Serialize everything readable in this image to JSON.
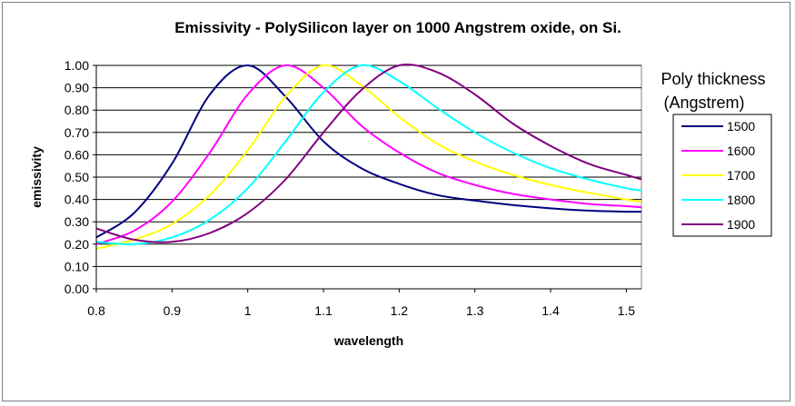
{
  "chart_data": {
    "type": "line",
    "title": "Emissivity - PolySilicon layer on 1000 Angstrem oxide, on Si.",
    "xlabel": "wavelength",
    "ylabel": "emissivity",
    "xlim": [
      0.8,
      1.52
    ],
    "ylim": [
      0.0,
      1.0
    ],
    "x_ticks": [
      "0.8",
      "0.9",
      "1",
      "1.1",
      "1.2",
      "1.3",
      "1.4",
      "1.5"
    ],
    "y_ticks": [
      "0.00",
      "0.10",
      "0.20",
      "0.30",
      "0.40",
      "0.50",
      "0.60",
      "0.70",
      "0.80",
      "0.90",
      "1.00"
    ],
    "grid": "horizontal",
    "legend_title_line1": "Poly thickness",
    "legend_title_line2": "(Angstrem)",
    "legend_position": "right",
    "x": [
      0.8,
      0.85,
      0.9,
      0.95,
      1.0,
      1.05,
      1.1,
      1.15,
      1.2,
      1.25,
      1.3,
      1.35,
      1.4,
      1.45,
      1.5,
      1.52
    ],
    "series": [
      {
        "name": "1500",
        "color": "#00007f",
        "values": [
          0.23,
          0.34,
          0.56,
          0.87,
          1.0,
          0.86,
          0.66,
          0.54,
          0.47,
          0.42,
          0.395,
          0.375,
          0.36,
          0.35,
          0.345,
          0.345
        ]
      },
      {
        "name": "1600",
        "color": "#ff00ff",
        "values": [
          0.2,
          0.26,
          0.39,
          0.61,
          0.87,
          1.0,
          0.9,
          0.73,
          0.61,
          0.52,
          0.465,
          0.425,
          0.4,
          0.38,
          0.37,
          0.365
        ]
      },
      {
        "name": "1700",
        "color": "#ffff00",
        "values": [
          0.18,
          0.22,
          0.29,
          0.42,
          0.62,
          0.86,
          1.0,
          0.91,
          0.77,
          0.65,
          0.57,
          0.51,
          0.465,
          0.43,
          0.4,
          0.39
        ]
      },
      {
        "name": "1800",
        "color": "#00ffff",
        "values": [
          0.21,
          0.2,
          0.23,
          0.31,
          0.45,
          0.66,
          0.88,
          1.0,
          0.93,
          0.81,
          0.7,
          0.61,
          0.54,
          0.49,
          0.45,
          0.44
        ]
      },
      {
        "name": "1900",
        "color": "#7f007f",
        "values": [
          0.27,
          0.22,
          0.21,
          0.25,
          0.34,
          0.49,
          0.7,
          0.89,
          1.0,
          0.97,
          0.87,
          0.74,
          0.64,
          0.56,
          0.51,
          0.49
        ]
      }
    ]
  }
}
